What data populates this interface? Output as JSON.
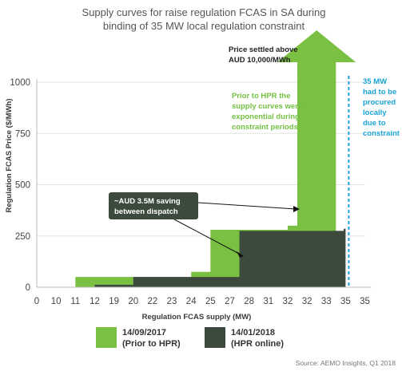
{
  "chart_data": {
    "type": "area",
    "title_lines": [
      "Supply curves for raise regulation FCAS in SA during",
      "binding of 35 MW local regulation constraint"
    ],
    "xlabel": "Regulation FCAS supply (MW)",
    "ylabel": "Regulation FCAS Price  ($/MWh)",
    "ylim": [
      0,
      1000
    ],
    "y_ticks": [
      0,
      250,
      500,
      750,
      1000
    ],
    "x_tick_labels": [
      "0",
      "10",
      "11",
      "12",
      "19",
      "20",
      "22",
      "23",
      "24",
      "25",
      "27",
      "28",
      "31",
      "32",
      "32",
      "33",
      "35",
      "35"
    ],
    "series": [
      {
        "name": "14/09/2017",
        "name_sub": "(Prior to HPR)",
        "color": "#7ac143",
        "steps": [
          [
            1,
            0
          ],
          [
            2,
            50
          ],
          [
            8,
            75
          ],
          [
            9,
            280
          ],
          [
            13,
            300
          ],
          [
            13.5,
            1000
          ],
          [
            15.5,
            1000
          ]
        ]
      },
      {
        "name": "14/01/2018",
        "name_sub": "(HPR online)",
        "color": "#3c4a3e",
        "steps": [
          [
            3,
            12
          ],
          [
            5,
            50
          ],
          [
            10.5,
            275
          ],
          [
            15.9,
            285
          ]
        ]
      }
    ],
    "constraint_x_index": 16,
    "annotations": {
      "price_settled": [
        "Price settled above",
        "AUD 10,000/MWh"
      ],
      "prior_to_hpr": [
        "Prior to HPR the",
        "supply curves were",
        "exponential during",
        "constraint periods"
      ],
      "constraint_35mw": [
        "35 MW",
        "had to be",
        "procured",
        "locally",
        "due to",
        "constraint"
      ],
      "saving": [
        "~AUD 3.5M saving",
        "between dispatch"
      ]
    },
    "source": "Source: AEMO Insights, Q1 2018"
  }
}
